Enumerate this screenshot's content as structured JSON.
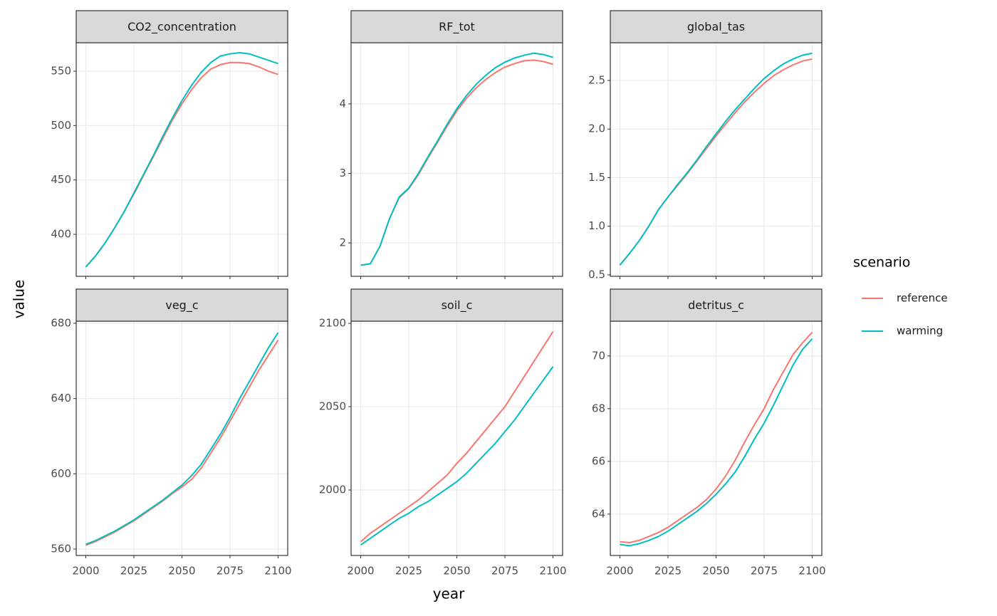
{
  "shared": {
    "x_label": "year",
    "y_label": "value",
    "legend_title": "scenario"
  },
  "chart_data": [
    {
      "type": "line",
      "title": "CO2_concentration",
      "x": [
        2000,
        2005,
        2010,
        2015,
        2020,
        2025,
        2030,
        2035,
        2040,
        2045,
        2050,
        2055,
        2060,
        2065,
        2070,
        2075,
        2080,
        2085,
        2090,
        2095,
        2100
      ],
      "series": [
        {
          "name": "reference",
          "color": "#F8766D",
          "values": [
            370,
            380,
            392,
            406,
            421,
            437,
            454,
            471,
            488,
            505,
            520,
            533,
            544,
            552,
            556,
            558,
            558,
            557,
            554,
            550,
            547
          ]
        },
        {
          "name": "warming",
          "color": "#00BFC4",
          "values": [
            370,
            380,
            392,
            406,
            421,
            438,
            455,
            472,
            490,
            507,
            523,
            537,
            549,
            558,
            564,
            566,
            567,
            566,
            563,
            560,
            557
          ]
        }
      ],
      "xlim": [
        1995,
        2105
      ],
      "ylim": [
        361.4,
        576.2
      ],
      "xticks": [
        2000,
        2025,
        2050,
        2075,
        2100
      ],
      "yticks": [
        400,
        450,
        500,
        550
      ],
      "grid": true
    },
    {
      "type": "line",
      "title": "RF_tot",
      "x": [
        2000,
        2005,
        2010,
        2015,
        2020,
        2025,
        2030,
        2035,
        2040,
        2045,
        2050,
        2055,
        2060,
        2065,
        2070,
        2075,
        2080,
        2085,
        2090,
        2095,
        2100
      ],
      "series": [
        {
          "name": "reference",
          "color": "#F8766D",
          "values": [
            1.68,
            1.7,
            1.95,
            2.35,
            2.65,
            2.78,
            2.98,
            3.22,
            3.45,
            3.68,
            3.9,
            4.08,
            4.23,
            4.35,
            4.45,
            4.53,
            4.58,
            4.62,
            4.63,
            4.61,
            4.57
          ]
        },
        {
          "name": "warming",
          "color": "#00BFC4",
          "values": [
            1.68,
            1.7,
            1.95,
            2.35,
            2.66,
            2.79,
            3.0,
            3.24,
            3.47,
            3.71,
            3.93,
            4.12,
            4.28,
            4.41,
            4.52,
            4.6,
            4.66,
            4.7,
            4.73,
            4.71,
            4.67
          ]
        }
      ],
      "xlim": [
        1995,
        2105
      ],
      "ylim": [
        1.52,
        4.88
      ],
      "xticks": [
        2000,
        2025,
        2050,
        2075,
        2100
      ],
      "yticks": [
        2,
        3,
        4
      ],
      "grid": true
    },
    {
      "type": "line",
      "title": "global_tas",
      "x": [
        2000,
        2005,
        2010,
        2015,
        2020,
        2025,
        2030,
        2035,
        2040,
        2045,
        2050,
        2055,
        2060,
        2065,
        2070,
        2075,
        2080,
        2085,
        2090,
        2095,
        2100
      ],
      "series": [
        {
          "name": "reference",
          "color": "#F8766D",
          "values": [
            0.6,
            0.72,
            0.85,
            1.0,
            1.17,
            1.3,
            1.42,
            1.54,
            1.67,
            1.8,
            1.93,
            2.05,
            2.17,
            2.28,
            2.38,
            2.47,
            2.55,
            2.61,
            2.66,
            2.7,
            2.72
          ]
        },
        {
          "name": "warming",
          "color": "#00BFC4",
          "values": [
            0.6,
            0.72,
            0.85,
            1.0,
            1.17,
            1.3,
            1.43,
            1.55,
            1.68,
            1.82,
            1.95,
            2.08,
            2.2,
            2.31,
            2.42,
            2.52,
            2.6,
            2.67,
            2.72,
            2.76,
            2.78
          ]
        }
      ],
      "xlim": [
        1995,
        2105
      ],
      "ylim": [
        0.485,
        2.888
      ],
      "xticks": [
        2000,
        2025,
        2050,
        2075,
        2100
      ],
      "yticks": [
        0.5,
        {
          "value": 1,
          "label": "1.0"
        },
        1.5,
        {
          "value": 2,
          "label": "2.0"
        },
        2.5
      ],
      "grid": true
    },
    {
      "type": "line",
      "title": "veg_c",
      "x": [
        2000,
        2005,
        2010,
        2015,
        2020,
        2025,
        2030,
        2035,
        2040,
        2045,
        2050,
        2055,
        2060,
        2065,
        2070,
        2075,
        2080,
        2085,
        2090,
        2095,
        2100
      ],
      "series": [
        {
          "name": "reference",
          "color": "#F8766D",
          "values": [
            562,
            564,
            566.5,
            569,
            572,
            575,
            578.5,
            582,
            585.5,
            589.5,
            593,
            597,
            603,
            611,
            619,
            628,
            637,
            646,
            655,
            663,
            671
          ]
        },
        {
          "name": "warming",
          "color": "#00BFC4",
          "values": [
            562.5,
            564.5,
            567,
            569.5,
            572.5,
            575.5,
            579,
            582.5,
            586,
            590,
            594,
            599,
            605,
            613,
            621,
            630,
            640,
            649,
            658,
            667,
            675
          ]
        }
      ],
      "xlim": [
        1995,
        2105
      ],
      "ylim": [
        556.6,
        681.1
      ],
      "xticks": [
        2000,
        2025,
        2050,
        2075,
        2100
      ],
      "yticks": [
        560,
        600,
        640,
        680
      ],
      "grid": true
    },
    {
      "type": "line",
      "title": "soil_c",
      "x": [
        2000,
        2005,
        2010,
        2015,
        2020,
        2025,
        2030,
        2035,
        2040,
        2045,
        2050,
        2055,
        2060,
        2065,
        2070,
        2075,
        2080,
        2085,
        2090,
        2095,
        2100
      ],
      "series": [
        {
          "name": "reference",
          "color": "#F8766D",
          "values": [
            1969,
            1974,
            1978,
            1982,
            1986,
            1990,
            1994,
            1999,
            2004,
            2009,
            2016,
            2022,
            2029,
            2036,
            2043,
            2050,
            2059,
            2068,
            2077,
            2086,
            2095
          ]
        },
        {
          "name": "warming",
          "color": "#00BFC4",
          "values": [
            1967,
            1971,
            1975,
            1979,
            1983,
            1986,
            1990,
            1993,
            1997,
            2001,
            2005,
            2010,
            2016,
            2022,
            2028,
            2035,
            2042,
            2050,
            2058,
            2066,
            2074
          ]
        }
      ],
      "xlim": [
        1995,
        2105
      ],
      "ylim": [
        1960.7,
        2101.3
      ],
      "xticks": [
        2000,
        2025,
        2050,
        2075,
        2100
      ],
      "yticks": [
        2000,
        2050,
        2100
      ],
      "grid": true
    },
    {
      "type": "line",
      "title": "detritus_c",
      "x": [
        2000,
        2005,
        2010,
        2015,
        2020,
        2025,
        2030,
        2035,
        2040,
        2045,
        2050,
        2055,
        2060,
        2065,
        2070,
        2075,
        2080,
        2085,
        2090,
        2095,
        2100
      ],
      "series": [
        {
          "name": "reference",
          "color": "#F8766D",
          "values": [
            62.95,
            62.92,
            63.0,
            63.15,
            63.3,
            63.5,
            63.75,
            64.0,
            64.25,
            64.55,
            64.95,
            65.45,
            66.05,
            66.75,
            67.4,
            68.0,
            68.75,
            69.4,
            70.05,
            70.5,
            70.9
          ]
        },
        {
          "name": "warming",
          "color": "#00BFC4",
          "values": [
            62.85,
            62.8,
            62.88,
            63.0,
            63.15,
            63.35,
            63.6,
            63.85,
            64.1,
            64.4,
            64.75,
            65.15,
            65.6,
            66.2,
            66.85,
            67.45,
            68.15,
            68.9,
            69.65,
            70.25,
            70.65
          ]
        }
      ],
      "xlim": [
        1995,
        2105
      ],
      "ylim": [
        62.43,
        71.32
      ],
      "xticks": [
        2000,
        2025,
        2050,
        2075,
        2100
      ],
      "yticks": [
        64,
        66,
        68,
        70
      ],
      "grid": true
    }
  ]
}
